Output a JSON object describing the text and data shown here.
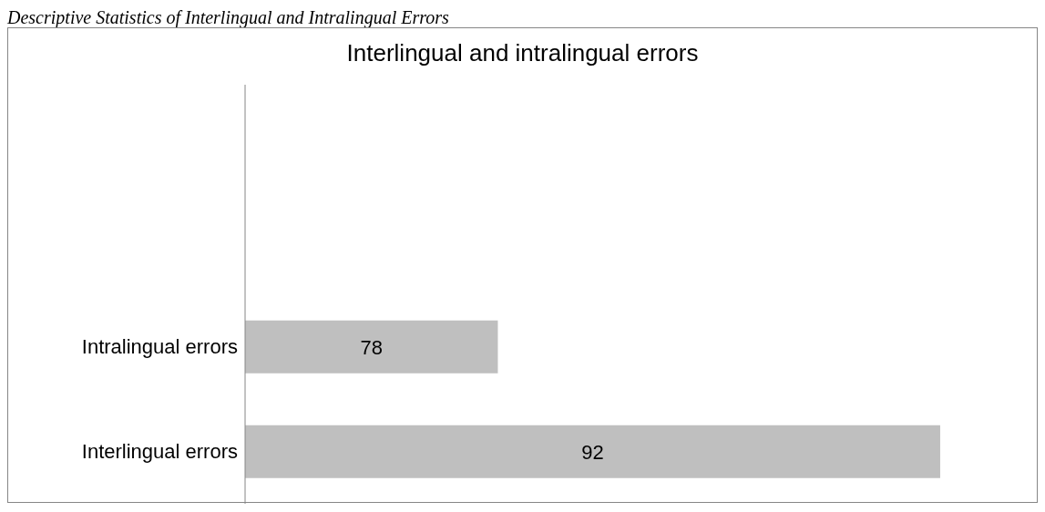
{
  "chart_data": {
    "type": "bar",
    "orientation": "horizontal",
    "title": "Interlingual and intralingual errors",
    "annotations": [
      "Descriptive Statistics of Interlingual and Intralingual Errors"
    ],
    "categories": [
      null,
      null,
      "Intralingual errors",
      "Interlingual errors"
    ],
    "values": [
      null,
      null,
      78,
      92
    ],
    "color": "#bfbfbf",
    "xlim": [
      70,
      95
    ],
    "data_labels": true
  }
}
